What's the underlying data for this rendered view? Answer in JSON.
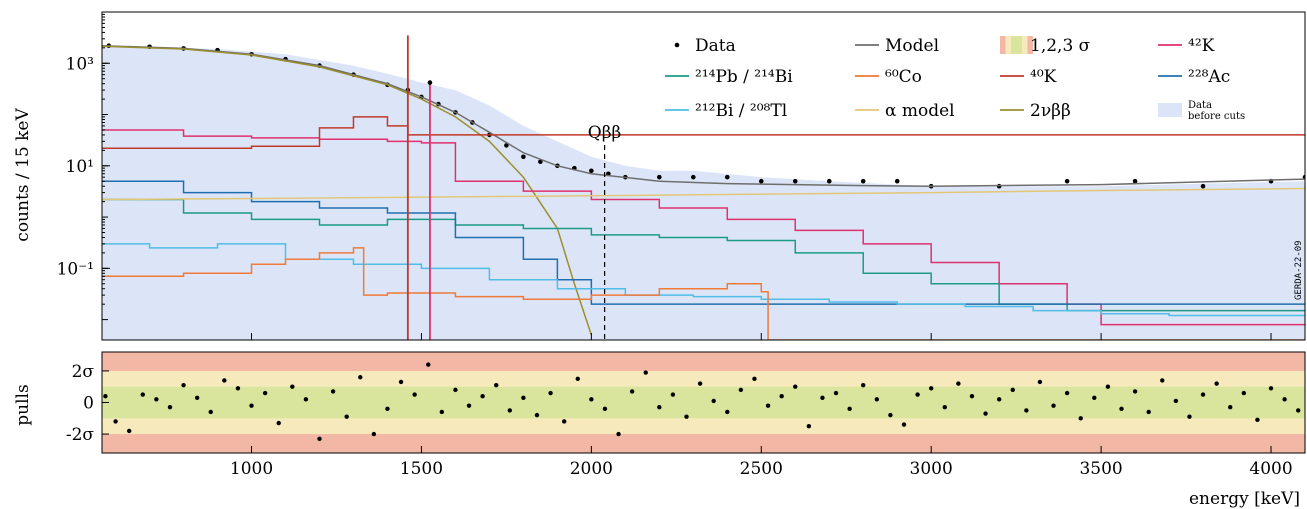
{
  "chart_data": {
    "type": "line",
    "xlabel": "energy [keV]",
    "ylabel": "counts / 15 keV",
    "ylabel_bottom": "pulls",
    "xlim": [
      560,
      4100
    ],
    "ylim": [
      0.004,
      10000
    ],
    "yscale": "log",
    "x_ticks": [
      1000,
      1500,
      2000,
      2500,
      3000,
      3500,
      4000
    ],
    "x_tick_labels": [
      "1000",
      "1500",
      "2000",
      "2500",
      "3000",
      "3500",
      "4000"
    ],
    "y_ticks": [
      0.1,
      10,
      1000
    ],
    "y_tick_labels": [
      "10⁻¹",
      "10¹",
      "10³"
    ],
    "pull_ticks": [
      2,
      0,
      -2
    ],
    "pull_tick_labels": [
      "2σ",
      "0",
      "-2σ"
    ],
    "pull_ylim": [
      -3.2,
      3.2
    ],
    "qbb_label": "Qββ",
    "qbb_energy": 2039,
    "watermark": "GERDA-22-09",
    "legend": {
      "placement": "top-right",
      "entries": [
        {
          "label": "Data",
          "symbol": "dot",
          "color": "#000000"
        },
        {
          "label": "Model",
          "symbol": "line",
          "color": "#6e6e6e"
        },
        {
          "label": "1,2,3 σ",
          "symbol": "bands",
          "color": "#e9a388"
        },
        {
          "label": "⁴²K",
          "symbol": "line",
          "color": "#e0306e"
        },
        {
          "label": "²¹⁴Pb / ²¹⁴Bi",
          "symbol": "line",
          "color": "#1d9a87"
        },
        {
          "label": "⁶⁰Co",
          "symbol": "line",
          "color": "#ef7a3a"
        },
        {
          "label": "⁴⁰K",
          "symbol": "line",
          "color": "#c0392b"
        },
        {
          "label": "²²⁸Ac",
          "symbol": "line",
          "color": "#1f6fb0"
        },
        {
          "label": "²¹²Bi / ²⁰⁸Tl",
          "symbol": "line",
          "color": "#4fbde6"
        },
        {
          "label": "α model",
          "symbol": "line",
          "color": "#e3c777"
        },
        {
          "label": "2νββ",
          "symbol": "line",
          "color": "#9b8f2e"
        },
        {
          "label": "Data before cuts",
          "symbol": "box",
          "color": "#dce5f7"
        }
      ]
    },
    "series": [
      {
        "name": "Data before cuts",
        "color": "#dce5f7",
        "x": [
          560,
          900,
          1100,
          1300,
          1460,
          1500,
          1600,
          1700,
          1800,
          1900,
          2000,
          2100,
          2200,
          2300,
          2500,
          2700,
          3000,
          3500,
          4100
        ],
        "y": [
          2200,
          1900,
          1500,
          900,
          500,
          420,
          300,
          150,
          60,
          30,
          15,
          10,
          8,
          8,
          6,
          5,
          4,
          4,
          5
        ]
      },
      {
        "name": "Data",
        "color": "#000000",
        "x": [
          580,
          700,
          800,
          900,
          1000,
          1100,
          1200,
          1300,
          1400,
          1460,
          1500,
          1550,
          1600,
          1650,
          1700,
          1750,
          1800,
          1850,
          1900,
          1950,
          2000,
          2050,
          2100,
          2200,
          2300,
          2400,
          2500,
          2600,
          2700,
          2800,
          2900,
          3000,
          3200,
          3400,
          3600,
          3800,
          4000,
          4100
        ],
        "y": [
          2200,
          2100,
          1950,
          1800,
          1500,
          1200,
          900,
          600,
          380,
          300,
          220,
          160,
          110,
          70,
          40,
          25,
          15,
          12,
          10,
          9,
          8,
          7,
          6,
          6,
          6,
          6,
          5,
          5,
          5,
          5,
          5,
          4,
          4,
          5,
          5,
          4,
          5,
          6
        ]
      },
      {
        "name": "Model",
        "color": "#6e6e6e",
        "x": [
          560,
          800,
          1000,
          1200,
          1400,
          1500,
          1600,
          1700,
          1800,
          1900,
          2000,
          2200,
          2400,
          2600,
          2800,
          3000,
          3500,
          4100
        ],
        "y": [
          2200,
          1950,
          1500,
          900,
          400,
          220,
          110,
          45,
          18,
          10,
          7,
          5,
          4.5,
          4.3,
          4.1,
          4.0,
          4.3,
          5.5
        ]
      },
      {
        "name": "2νββ",
        "color": "#9b8f2e",
        "x": [
          560,
          800,
          1000,
          1200,
          1400,
          1500,
          1600,
          1700,
          1800,
          1900,
          1950,
          2000
        ],
        "y": [
          2150,
          1900,
          1450,
          850,
          380,
          200,
          90,
          30,
          6,
          0.6,
          0.05,
          0.005
        ]
      },
      {
        "name": "⁴²K",
        "color": "#e0306e",
        "x": [
          560,
          800,
          1000,
          1200,
          1400,
          1500,
          1600,
          1800,
          2000,
          2200,
          2400,
          2600,
          2800,
          3000,
          3200,
          3400,
          3500
        ],
        "y": [
          50,
          38,
          35,
          33,
          30,
          28,
          5,
          3.2,
          2.2,
          1.5,
          0.9,
          0.55,
          0.3,
          0.13,
          0.05,
          0.02,
          0.008
        ]
      },
      {
        "name": "⁴⁰K",
        "color": "#c0392b",
        "x": [
          560,
          800,
          1000,
          1200,
          1300,
          1400,
          1460
        ],
        "y": [
          22,
          22,
          24,
          55,
          90,
          60,
          40
        ]
      },
      {
        "name": "²¹⁴Pb / ²¹⁴Bi",
        "color": "#1d9a87",
        "x": [
          560,
          800,
          1000,
          1200,
          1400,
          1600,
          1800,
          2000,
          2200,
          2400,
          2600,
          2800,
          3000,
          3200,
          3400
        ],
        "y": [
          2.2,
          1.2,
          0.9,
          0.7,
          0.9,
          0.7,
          0.6,
          0.45,
          0.4,
          0.35,
          0.2,
          0.08,
          0.05,
          0.02,
          0.015
        ]
      },
      {
        "name": "²²⁸Ac",
        "color": "#1f6fb0",
        "x": [
          560,
          800,
          1000,
          1200,
          1400,
          1600,
          1800,
          1900,
          2000
        ],
        "y": [
          5,
          3,
          2,
          1.5,
          1.2,
          0.4,
          0.15,
          0.06,
          0.02
        ]
      },
      {
        "name": "²¹²Bi / ²⁰⁸Tl",
        "color": "#4fbde6",
        "x": [
          560,
          700,
          900,
          1100,
          1300,
          1500,
          1700,
          1900,
          2100,
          2300,
          2500,
          2700,
          2900,
          3100,
          3300,
          3500,
          3700
        ],
        "y": [
          0.3,
          0.25,
          0.3,
          0.15,
          0.12,
          0.1,
          0.06,
          0.04,
          0.03,
          0.028,
          0.025,
          0.022,
          0.02,
          0.018,
          0.015,
          0.013,
          0.012
        ]
      },
      {
        "name": "⁶⁰Co",
        "color": "#ef7a3a",
        "x": [
          560,
          800,
          1000,
          1100,
          1200,
          1300,
          1330,
          1400,
          1600,
          1800,
          2000,
          2200,
          2400,
          2500,
          2520
        ],
        "y": [
          0.07,
          0.08,
          0.12,
          0.15,
          0.2,
          0.25,
          0.03,
          0.033,
          0.028,
          0.025,
          0.03,
          0.04,
          0.05,
          0.035,
          0.004
        ]
      },
      {
        "name": "α model",
        "color": "#e3c777",
        "x": [
          560,
          1000,
          1500,
          2000,
          2500,
          3000,
          3500,
          4100
        ],
        "y": [
          2.2,
          2.3,
          2.45,
          2.6,
          2.8,
          3.0,
          3.3,
          3.6
        ]
      }
    ],
    "peaks": [
      {
        "series": "⁴⁰K",
        "x": 1460,
        "y": 3500
      },
      {
        "series": "⁴²K",
        "x": 1525,
        "y": 400
      },
      {
        "series": "Data",
        "x": 1525,
        "y": 420
      }
    ],
    "pulls": {
      "x": [
        570,
        600,
        640,
        680,
        720,
        760,
        800,
        840,
        880,
        920,
        960,
        1000,
        1040,
        1080,
        1120,
        1160,
        1200,
        1240,
        1280,
        1320,
        1360,
        1400,
        1440,
        1480,
        1520,
        1560,
        1600,
        1640,
        1680,
        1720,
        1760,
        1800,
        1840,
        1880,
        1920,
        1960,
        2000,
        2040,
        2080,
        2120,
        2160,
        2200,
        2240,
        2280,
        2320,
        2360,
        2400,
        2440,
        2480,
        2520,
        2560,
        2600,
        2640,
        2680,
        2720,
        2760,
        2800,
        2840,
        2880,
        2920,
        2960,
        3000,
        3040,
        3080,
        3120,
        3160,
        3200,
        3240,
        3280,
        3320,
        3360,
        3400,
        3440,
        3480,
        3520,
        3560,
        3600,
        3640,
        3680,
        3720,
        3760,
        3800,
        3840,
        3880,
        3920,
        3960,
        4000,
        4040,
        4080
      ],
      "y": [
        0.4,
        -1.2,
        -1.8,
        0.5,
        0.2,
        -0.3,
        1.1,
        0.3,
        -0.6,
        1.4,
        0.9,
        -0.2,
        0.6,
        -1.3,
        1.0,
        0.2,
        -2.3,
        0.7,
        -0.9,
        1.6,
        -2.0,
        -0.4,
        1.3,
        0.5,
        2.4,
        -0.6,
        0.8,
        -0.2,
        0.4,
        1.1,
        -0.5,
        0.3,
        -0.8,
        0.6,
        -1.2,
        1.5,
        0.2,
        -0.4,
        -2.0,
        0.7,
        1.9,
        -0.3,
        0.5,
        -0.9,
        1.2,
        0.1,
        -0.6,
        0.8,
        1.5,
        -0.2,
        0.4,
        1.0,
        -1.5,
        0.3,
        0.6,
        -0.4,
        1.1,
        0.2,
        -0.8,
        -1.4,
        0.5,
        0.9,
        -0.3,
        1.2,
        0.4,
        -0.7,
        0.2,
        0.8,
        -0.5,
        1.3,
        -0.2,
        0.6,
        -1.0,
        0.3,
        1.0,
        -0.4,
        0.7,
        -0.6,
        1.4,
        0.1,
        -0.9,
        0.5,
        1.2,
        -0.3,
        0.6,
        -1.1,
        0.9,
        0.2,
        -0.5
      ]
    },
    "bands": {
      "one_sigma": "#d9e59c",
      "two_sigma": "#f6e9bb",
      "three_sigma": "#f3b7a6"
    },
    "grid": false
  }
}
